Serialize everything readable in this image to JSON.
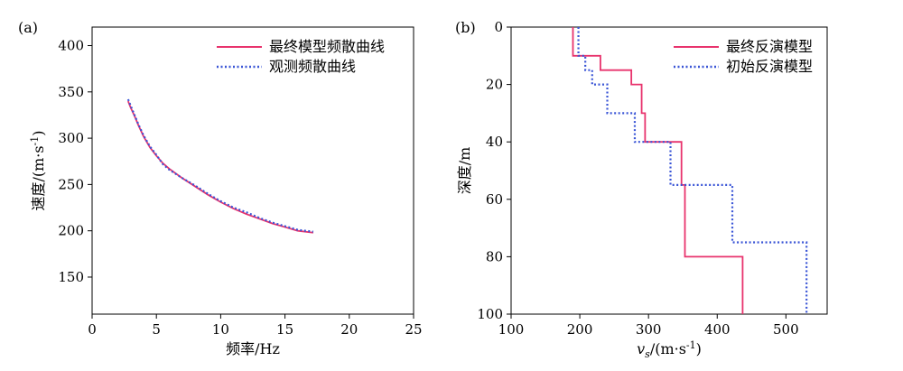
{
  "chart_data": [
    {
      "type": "line",
      "panel": "(a)",
      "xlabel": "频率/Hz",
      "ylabel": "速度/(m·s-1)",
      "xlim": [
        0,
        25
      ],
      "ylim": [
        110,
        420
      ],
      "xticks": [
        0,
        5,
        10,
        15,
        20,
        25
      ],
      "yticks": [
        150,
        200,
        250,
        300,
        350,
        400
      ],
      "legend_position": "top-right",
      "series": [
        {
          "name": "最终模型频散曲线",
          "color": "#e8336d",
          "style": "solid",
          "x": [
            2.8,
            3.0,
            3.3,
            3.6,
            4.0,
            4.5,
            5.0,
            5.5,
            6.0,
            7.0,
            8.0,
            9.0,
            10.0,
            11.0,
            12.0,
            13.0,
            14.0,
            15.0,
            16.0,
            17.2
          ],
          "y": [
            340,
            333,
            324,
            314,
            302,
            290,
            281,
            273,
            267,
            257,
            248,
            239,
            231,
            224,
            218,
            213,
            208,
            204,
            200,
            198
          ]
        },
        {
          "name": "观测频散曲线",
          "color": "#3a55d6",
          "style": "dotted",
          "x": [
            2.8,
            3.0,
            3.3,
            3.6,
            4.0,
            4.5,
            5.0,
            5.5,
            6.0,
            7.0,
            8.0,
            9.0,
            10.0,
            11.0,
            12.0,
            13.0,
            14.0,
            15.0,
            16.0,
            17.2
          ],
          "y": [
            342,
            335,
            325,
            315,
            303,
            291,
            282,
            272,
            266,
            257,
            249,
            240,
            232,
            225,
            220,
            214,
            209,
            205,
            201,
            199
          ]
        }
      ]
    },
    {
      "type": "line",
      "panel": "(b)",
      "xlabel_symbol": "v",
      "xlabel_sub": "s",
      "xlabel_rest": "/(m·s",
      "xlabel_sup": "-1",
      "xlabel_end": ")",
      "ylabel": "深度/m",
      "xlim": [
        100,
        560
      ],
      "ylim": [
        0,
        100
      ],
      "y_inverted": true,
      "xticks": [
        100,
        200,
        300,
        400,
        500
      ],
      "yticks": [
        0,
        20,
        40,
        60,
        80,
        100
      ],
      "legend_position": "top-right",
      "series": [
        {
          "name": "最终反演模型",
          "color": "#e8336d",
          "style": "solid",
          "x": [
            190,
            190,
            230,
            230,
            275,
            275,
            290,
            290,
            295,
            295,
            348,
            348,
            353,
            353,
            437,
            437
          ],
          "y": [
            0,
            10,
            10,
            15,
            15,
            20,
            20,
            30,
            30,
            40,
            40,
            55,
            55,
            80,
            80,
            100
          ]
        },
        {
          "name": "初始反演模型",
          "color": "#3a55d6",
          "style": "dotted",
          "x": [
            198,
            198,
            208,
            208,
            218,
            218,
            240,
            240,
            280,
            280,
            332,
            332,
            422,
            422,
            530,
            530
          ],
          "y": [
            0,
            10,
            10,
            15,
            15,
            20,
            20,
            30,
            30,
            40,
            40,
            55,
            55,
            75,
            75,
            100
          ]
        }
      ]
    }
  ]
}
